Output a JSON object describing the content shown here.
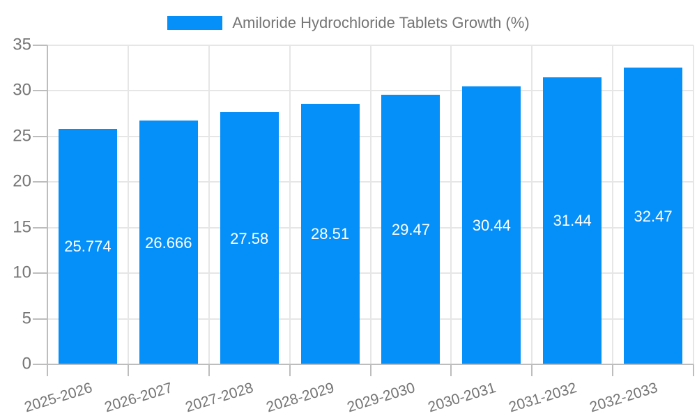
{
  "legend": {
    "label": "Amiloride Hydrochloride Tablets Growth (%)"
  },
  "chart_data": {
    "type": "bar",
    "title": "Amiloride Hydrochloride Tablets Growth (%)",
    "categories": [
      "2025-2026",
      "2026-2027",
      "2027-2028",
      "2028-2029",
      "2029-2030",
      "2030-2031",
      "2031-2032",
      "2032-2033"
    ],
    "values": [
      25.774,
      26.666,
      27.58,
      28.51,
      29.47,
      30.44,
      31.44,
      32.47
    ],
    "value_labels": [
      "25.774",
      "26.666",
      "27.58",
      "28.51",
      "29.47",
      "30.44",
      "31.44",
      "32.47"
    ],
    "xlabel": "",
    "ylabel": "",
    "ylim": [
      0,
      35
    ],
    "ytick_step": 5,
    "grid": true,
    "legend_position": "top",
    "x_label_rotation_deg": -17,
    "colors": {
      "bar": "#058ff8",
      "grid": "#e6e6e6",
      "axis": "#bdbdbd",
      "label_text": "#757575",
      "bar_label_text": "#ffffff",
      "background": "#ffffff"
    }
  }
}
